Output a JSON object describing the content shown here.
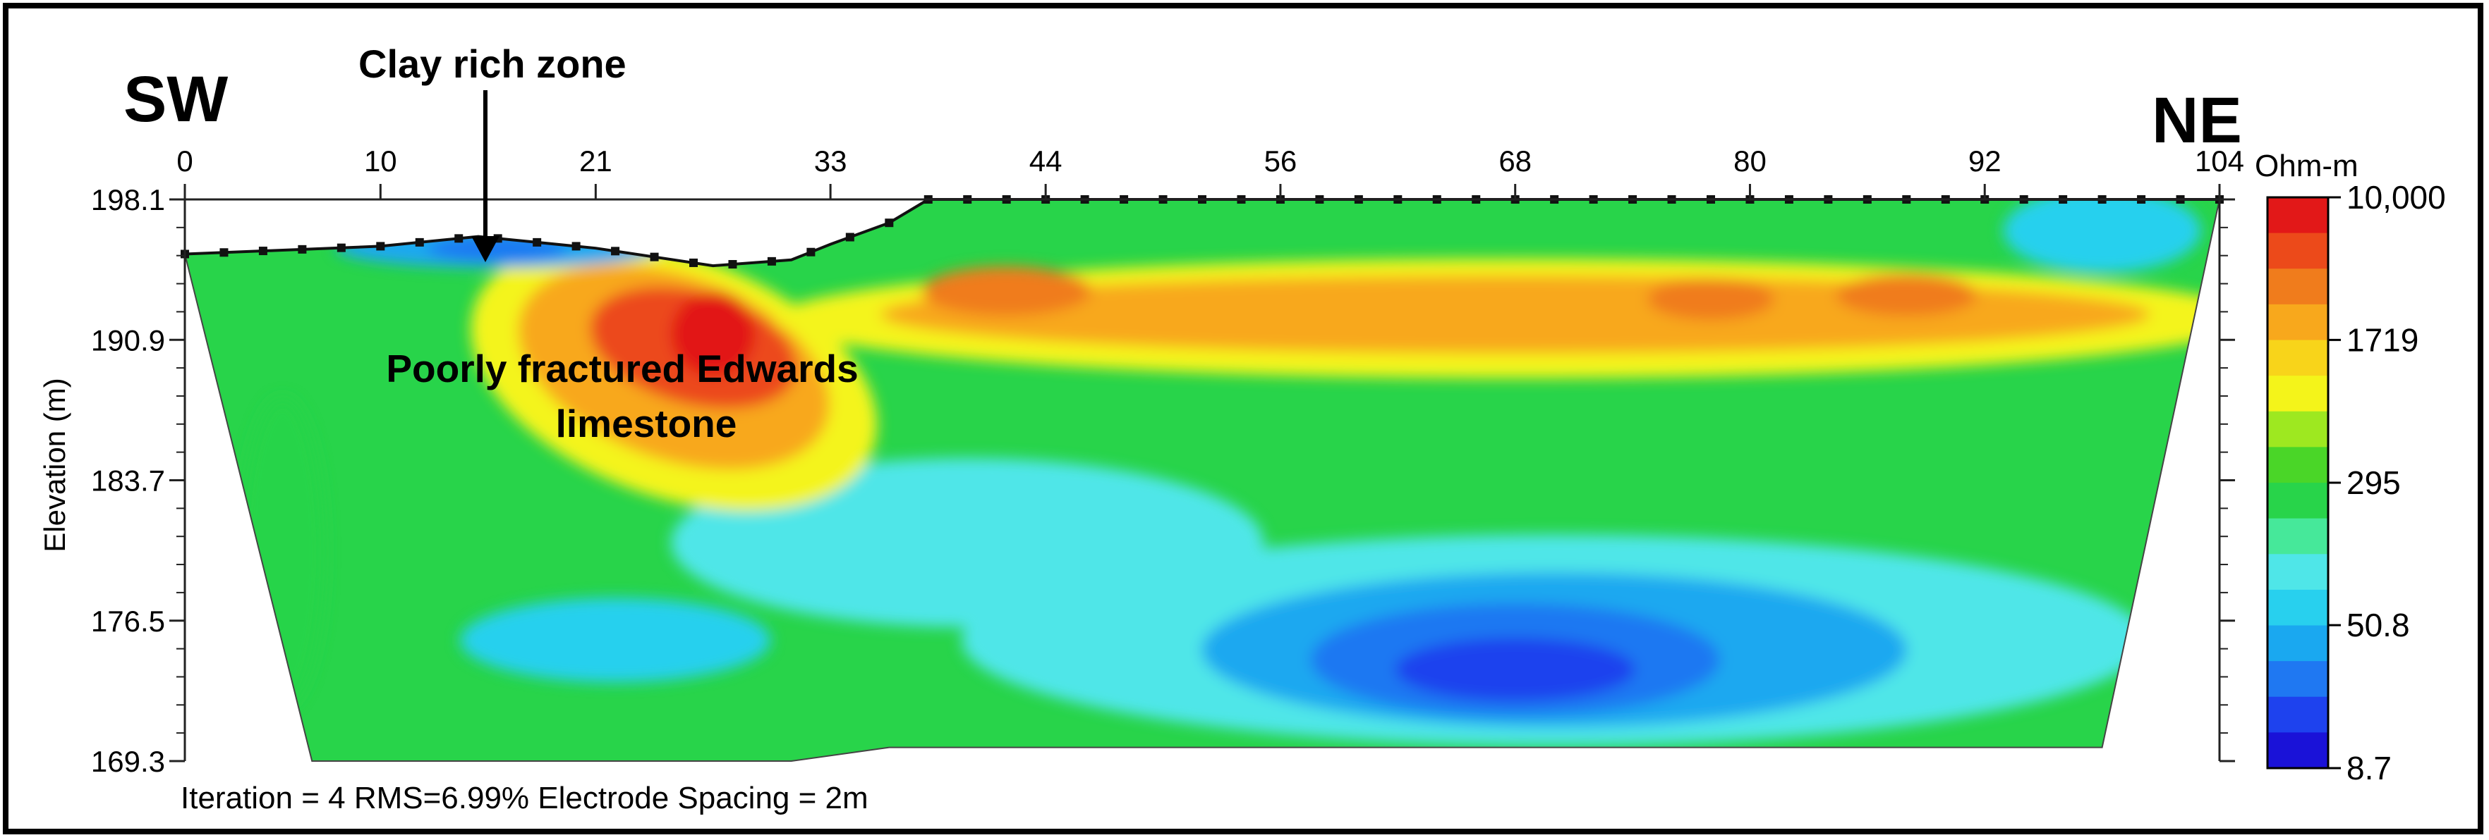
{
  "chart_data": {
    "type": "heatmap",
    "title": "",
    "labels": {
      "left_direction": "SW",
      "right_direction": "NE",
      "clay_annotation": "Clay rich zone",
      "limestone_line1": "Poorly fractured Edwards",
      "limestone_line2": "limestone",
      "footer": "Iteration = 4 RMS=6.99% Electrode Spacing = 2m"
    },
    "xlabel": "",
    "ylabel": "Elevation (m)",
    "x_ticks": [
      "0",
      "10",
      "21",
      "33",
      "44",
      "56",
      "68",
      "80",
      "92",
      "104"
    ],
    "x_tick_values": [
      0,
      10,
      21,
      33,
      44,
      56,
      68,
      80,
      92,
      104
    ],
    "xlim": [
      0,
      104
    ],
    "y_ticks": [
      "198.1",
      "190.9",
      "183.7",
      "176.5",
      "169.3"
    ],
    "y_tick_values": [
      198.1,
      190.9,
      183.7,
      176.5,
      169.3
    ],
    "ylim": [
      169.3,
      198.1
    ],
    "colorbar": {
      "unit": "Ohm-m",
      "tick_labels": [
        "10,000",
        "1719",
        "295",
        "50.8",
        "8.7"
      ],
      "tick_values": [
        10000,
        1719,
        295,
        50.8,
        8.7
      ],
      "scale": "log",
      "colors": [
        "#1a12d8",
        "#1e42ee",
        "#1f78f2",
        "#1aa8f0",
        "#28d0ee",
        "#4fe6e8",
        "#46e89a",
        "#28d44a",
        "#4ad628",
        "#9ee820",
        "#f4f41a",
        "#f8d41a",
        "#f8a81c",
        "#f07c1c",
        "#ec4a1a",
        "#e21818"
      ]
    },
    "surface_profile": [
      {
        "x": 0,
        "elev": 195.3
      },
      {
        "x": 5,
        "elev": 195.5
      },
      {
        "x": 10,
        "elev": 195.7
      },
      {
        "x": 15,
        "elev": 196.2
      },
      {
        "x": 21,
        "elev": 195.6
      },
      {
        "x": 27,
        "elev": 194.7
      },
      {
        "x": 31,
        "elev": 195.0
      },
      {
        "x": 33,
        "elev": 195.8
      },
      {
        "x": 36,
        "elev": 196.9
      },
      {
        "x": 38,
        "elev": 198.1
      },
      {
        "x": 104,
        "elev": 198.1
      }
    ],
    "section_bottom": [
      {
        "x": 6.5,
        "elev": 169.3
      },
      {
        "x": 31,
        "elev": 169.3
      },
      {
        "x": 36,
        "elev": 170.0
      },
      {
        "x": 98,
        "elev": 170.0
      }
    ],
    "features": [
      {
        "zone": "clay-rich",
        "x_center": 16,
        "elev": 196.0,
        "resistivity": 15
      },
      {
        "zone": "limestone-high",
        "x_center": 24,
        "elev": 190.5,
        "resistivity": 10000
      },
      {
        "zone": "high-band-east",
        "x_center": 70,
        "elev": 192.0,
        "resistivity": 1719
      },
      {
        "zone": "low-resistivity-body",
        "x_center": 68,
        "elev": 176.0,
        "resistivity": 20
      }
    ]
  }
}
